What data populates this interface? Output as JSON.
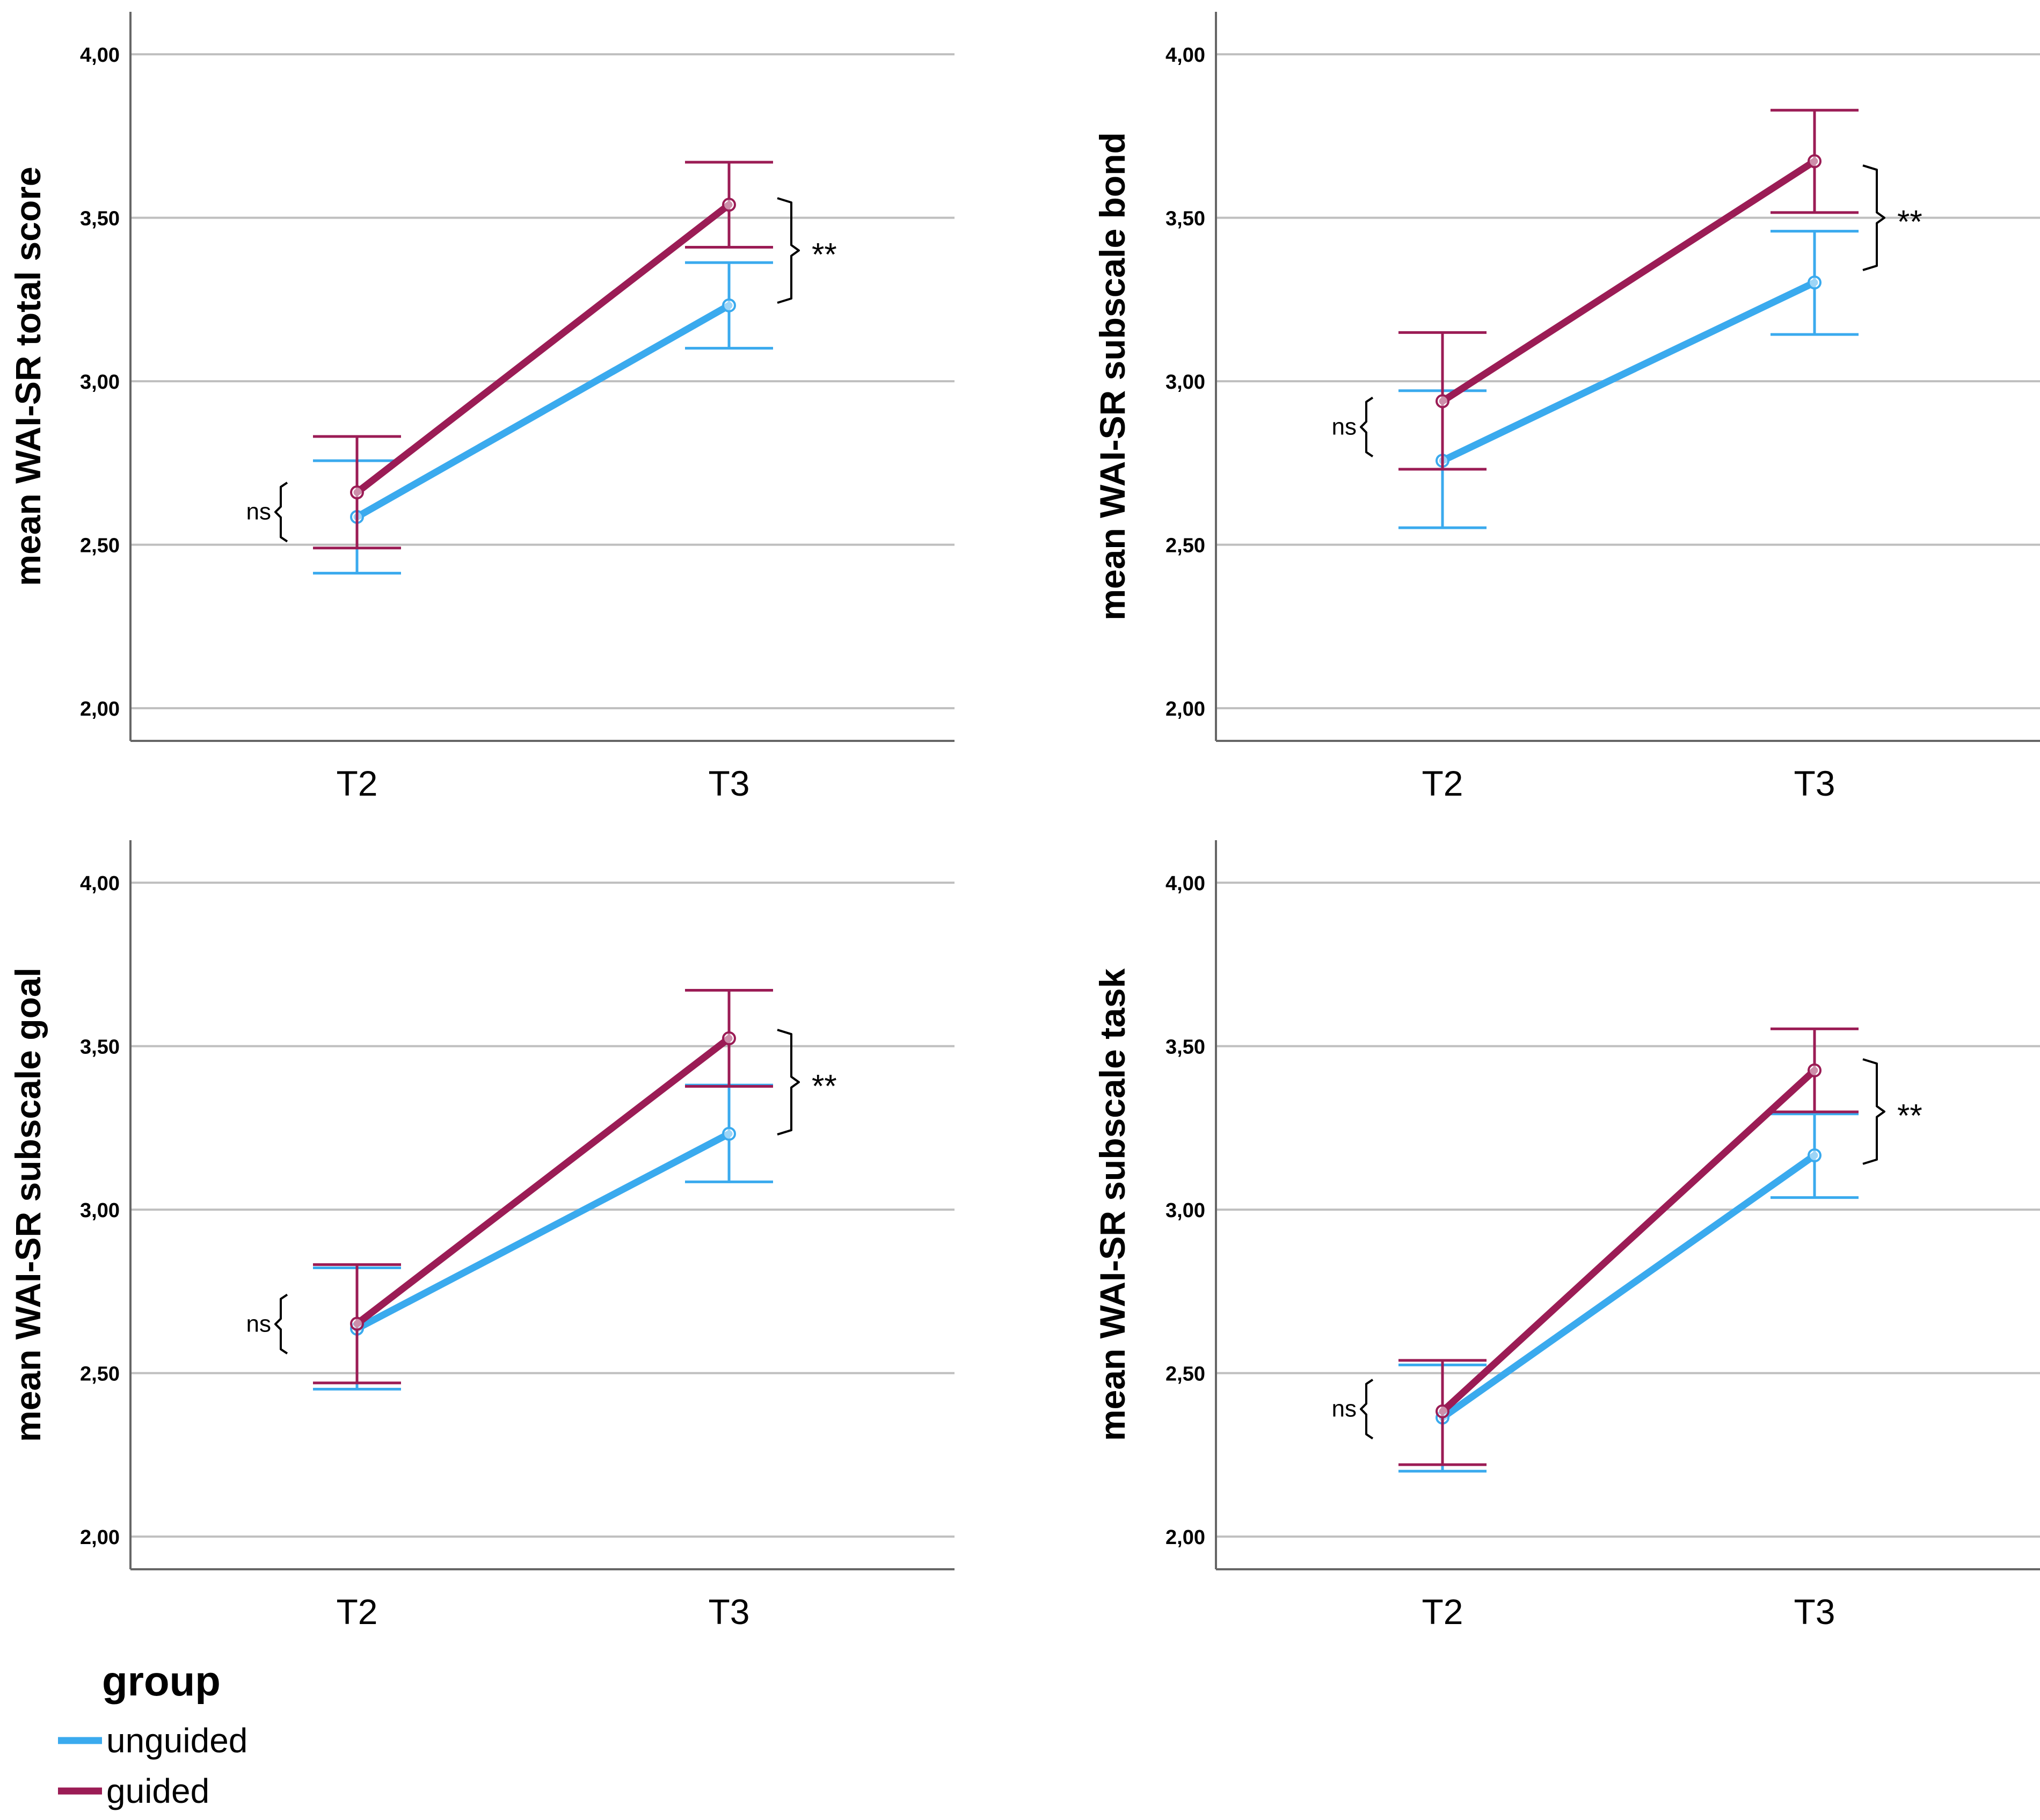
{
  "colors": {
    "unguided": "#3aaaee",
    "guided": "#9b1c55",
    "grid": "#bfbfbf",
    "axis": "#666666"
  },
  "legend": {
    "title": "group",
    "items": [
      {
        "label": "unguided",
        "color": "#3aaaee"
      },
      {
        "label": "guided",
        "color": "#9b1c55"
      }
    ]
  },
  "chart_data": [
    {
      "type": "line",
      "ylabel": "mean WAI-SR total score",
      "categories": [
        "T2",
        "T3"
      ],
      "ylim": [
        1.9,
        4.13
      ],
      "yticks": [
        "2,00",
        "2,50",
        "3,00",
        "3,50",
        "4,00"
      ],
      "ytick_values": [
        2.0,
        2.5,
        3.0,
        3.5,
        4.0
      ],
      "series": [
        {
          "name": "unguided",
          "values": [
            2.585,
            3.232
          ],
          "ci_low": [
            2.413,
            3.101
          ],
          "ci_high": [
            2.757,
            3.363
          ]
        },
        {
          "name": "guided",
          "values": [
            2.66,
            3.54
          ],
          "ci_low": [
            2.49,
            3.41
          ],
          "ci_high": [
            2.831,
            3.67
          ]
        }
      ],
      "annotations": [
        {
          "label": "ns",
          "category": "T2",
          "y_low": 2.51,
          "y_high": 2.69,
          "side": "left"
        },
        {
          "label": "**",
          "category": "T3",
          "y_low": 3.24,
          "y_high": 3.56,
          "side": "right"
        }
      ]
    },
    {
      "type": "line",
      "ylabel": "mean WAI-SR subscale bond",
      "categories": [
        "T2",
        "T3"
      ],
      "ylim": [
        1.9,
        4.13
      ],
      "yticks": [
        "2,00",
        "2,50",
        "3,00",
        "3,50",
        "4,00"
      ],
      "ytick_values": [
        2.0,
        2.5,
        3.0,
        3.5,
        4.0
      ],
      "series": [
        {
          "name": "unguided",
          "values": [
            2.757,
            3.302
          ],
          "ci_low": [
            2.552,
            3.143
          ],
          "ci_high": [
            2.971,
            3.459
          ]
        },
        {
          "name": "guided",
          "values": [
            2.939,
            3.673
          ],
          "ci_low": [
            2.731,
            3.516
          ],
          "ci_high": [
            3.149,
            3.829
          ]
        }
      ],
      "annotations": [
        {
          "label": "ns",
          "category": "T2",
          "y_low": 2.77,
          "y_high": 2.95,
          "side": "left"
        },
        {
          "label": "**",
          "category": "T3",
          "y_low": 3.34,
          "y_high": 3.66,
          "side": "right"
        }
      ]
    },
    {
      "type": "line",
      "ylabel": "mean WAI-SR subscale goal",
      "categories": [
        "T2",
        "T3"
      ],
      "ylim": [
        1.9,
        4.13
      ],
      "yticks": [
        "2,00",
        "2,50",
        "3,00",
        "3,50",
        "4,00"
      ],
      "ytick_values": [
        2.0,
        2.5,
        3.0,
        3.5,
        4.0
      ],
      "series": [
        {
          "name": "unguided",
          "values": [
            2.636,
            3.232
          ],
          "ci_low": [
            2.451,
            3.085
          ],
          "ci_high": [
            2.822,
            3.381
          ]
        },
        {
          "name": "guided",
          "values": [
            2.651,
            3.524
          ],
          "ci_low": [
            2.47,
            3.377
          ],
          "ci_high": [
            2.832,
            3.671
          ]
        }
      ],
      "annotations": [
        {
          "label": "ns",
          "category": "T2",
          "y_low": 2.56,
          "y_high": 2.74,
          "side": "left"
        },
        {
          "label": "**",
          "category": "T3",
          "y_low": 3.23,
          "y_high": 3.55,
          "side": "right"
        }
      ]
    },
    {
      "type": "line",
      "ylabel": "mean WAI-SR subscale task",
      "categories": [
        "T2",
        "T3"
      ],
      "ylim": [
        1.9,
        4.13
      ],
      "yticks": [
        "2,00",
        "2,50",
        "3,00",
        "3,50",
        "4,00"
      ],
      "ytick_values": [
        2.0,
        2.5,
        3.0,
        3.5,
        4.0
      ],
      "series": [
        {
          "name": "unguided",
          "values": [
            2.364,
            3.166
          ],
          "ci_low": [
            2.2,
            3.037
          ],
          "ci_high": [
            2.525,
            3.293
          ]
        },
        {
          "name": "guided",
          "values": [
            2.383,
            3.426
          ],
          "ci_low": [
            2.22,
            3.299
          ],
          "ci_high": [
            2.539,
            3.553
          ]
        }
      ],
      "annotations": [
        {
          "label": "ns",
          "category": "T2",
          "y_low": 2.3,
          "y_high": 2.48,
          "side": "left"
        },
        {
          "label": "**",
          "category": "T3",
          "y_low": 3.14,
          "y_high": 3.46,
          "side": "right"
        }
      ]
    }
  ]
}
